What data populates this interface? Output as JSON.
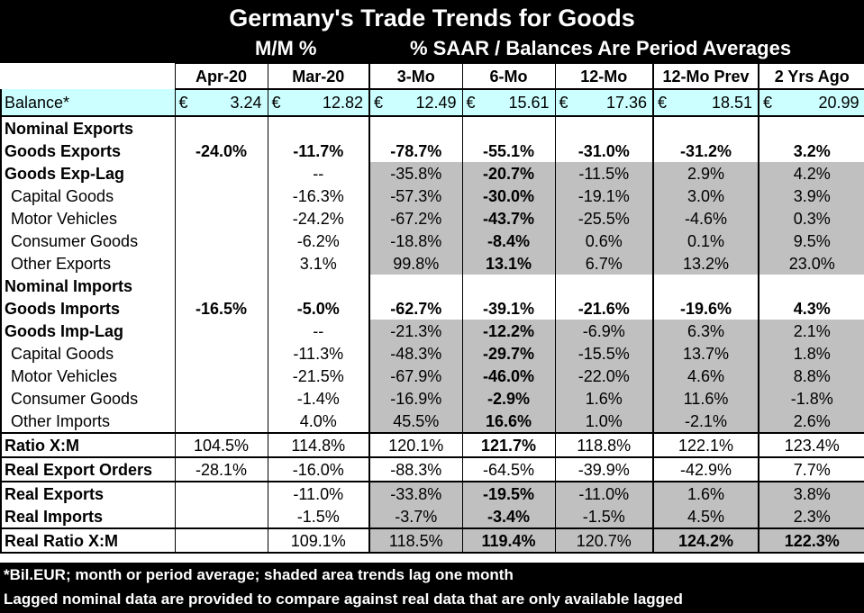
{
  "title": "Germany's Trade Trends for Goods",
  "subtitle_left": "M/M %",
  "subtitle_right": "% SAAR / Balances Are Period Averages",
  "columns": [
    "Apr-20",
    "Mar-20",
    "3-Mo",
    "6-Mo",
    "12-Mo",
    "12-Mo Prev",
    "2 Yrs Ago"
  ],
  "balance": {
    "label": "Balance*",
    "currency": "€",
    "values": [
      "3.24",
      "12.82",
      "12.49",
      "15.61",
      "17.36",
      "18.51",
      "20.99"
    ]
  },
  "rows": [
    {
      "label": "Nominal Exports",
      "values": [
        "",
        "",
        "",
        "",
        "",
        "",
        ""
      ]
    },
    {
      "label": "Goods Exports",
      "values": [
        "-24.0%",
        "-11.7%",
        "-78.7%",
        "-55.1%",
        "-31.0%",
        "-31.2%",
        "3.2%"
      ]
    },
    {
      "label": "Goods Exp-Lag",
      "values": [
        "",
        "--",
        "-35.8%",
        "-20.7%",
        "-11.5%",
        "2.9%",
        "4.2%"
      ]
    },
    {
      "label": "Capital Goods",
      "values": [
        "",
        "-16.3%",
        "-57.3%",
        "-30.0%",
        "-19.1%",
        "3.0%",
        "3.9%"
      ]
    },
    {
      "label": "Motor Vehicles",
      "values": [
        "",
        "-24.2%",
        "-67.2%",
        "-43.7%",
        "-25.5%",
        "-4.6%",
        "0.3%"
      ]
    },
    {
      "label": "Consumer Goods",
      "values": [
        "",
        "-6.2%",
        "-18.8%",
        "-8.4%",
        "0.6%",
        "0.1%",
        "9.5%"
      ]
    },
    {
      "label": "Other Exports",
      "values": [
        "",
        "3.1%",
        "99.8%",
        "13.1%",
        "6.7%",
        "13.2%",
        "23.0%"
      ]
    },
    {
      "label": "Nominal Imports",
      "values": [
        "",
        "",
        "",
        "",
        "",
        "",
        ""
      ]
    },
    {
      "label": "Goods Imports",
      "values": [
        "-16.5%",
        "-5.0%",
        "-62.7%",
        "-39.1%",
        "-21.6%",
        "-19.6%",
        "4.3%"
      ]
    },
    {
      "label": "Goods Imp-Lag",
      "values": [
        "",
        "--",
        "-21.3%",
        "-12.2%",
        "-6.9%",
        "6.3%",
        "2.1%"
      ]
    },
    {
      "label": "Capital Goods",
      "values": [
        "",
        "-11.3%",
        "-48.3%",
        "-29.7%",
        "-15.5%",
        "13.7%",
        "1.8%"
      ]
    },
    {
      "label": "Motor Vehicles",
      "values": [
        "",
        "-21.5%",
        "-67.9%",
        "-46.0%",
        "-22.0%",
        "4.6%",
        "8.8%"
      ]
    },
    {
      "label": "Consumer Goods",
      "values": [
        "",
        "-1.4%",
        "-16.9%",
        "-2.9%",
        "1.6%",
        "11.6%",
        "-1.8%"
      ]
    },
    {
      "label": "Other Imports",
      "values": [
        "",
        "4.0%",
        "45.5%",
        "16.6%",
        "1.0%",
        "-2.1%",
        "2.6%"
      ]
    },
    {
      "label": "Ratio X:M",
      "values": [
        "104.5%",
        "114.8%",
        "120.1%",
        "121.7%",
        "118.8%",
        "122.1%",
        "123.4%"
      ]
    },
    {
      "label": "Real Export Orders",
      "values": [
        "-28.1%",
        "-16.0%",
        "-88.3%",
        "-64.5%",
        "-39.9%",
        "-42.9%",
        "7.7%"
      ]
    },
    {
      "label": "Real Exports",
      "values": [
        "",
        "-11.0%",
        "-33.8%",
        "-19.5%",
        "-11.0%",
        "1.6%",
        "3.8%"
      ]
    },
    {
      "label": "Real Imports",
      "values": [
        "",
        "-1.5%",
        "-3.7%",
        "-3.4%",
        "-1.5%",
        "4.5%",
        "2.3%"
      ]
    },
    {
      "label": "Real Ratio X:M",
      "values": [
        "",
        "109.1%",
        "118.5%",
        "119.4%",
        "120.7%",
        "124.2%",
        "122.3%"
      ]
    }
  ],
  "footnote1": "*Bil.EUR; month or period average; shaded area trends lag one month",
  "footnote2": "Lagged nominal data are provided to compare against real data that are only available lagged",
  "colors": {
    "header_bg": "#000000",
    "shade": "#c0c0c0",
    "balance_bg": "#ccffff"
  }
}
